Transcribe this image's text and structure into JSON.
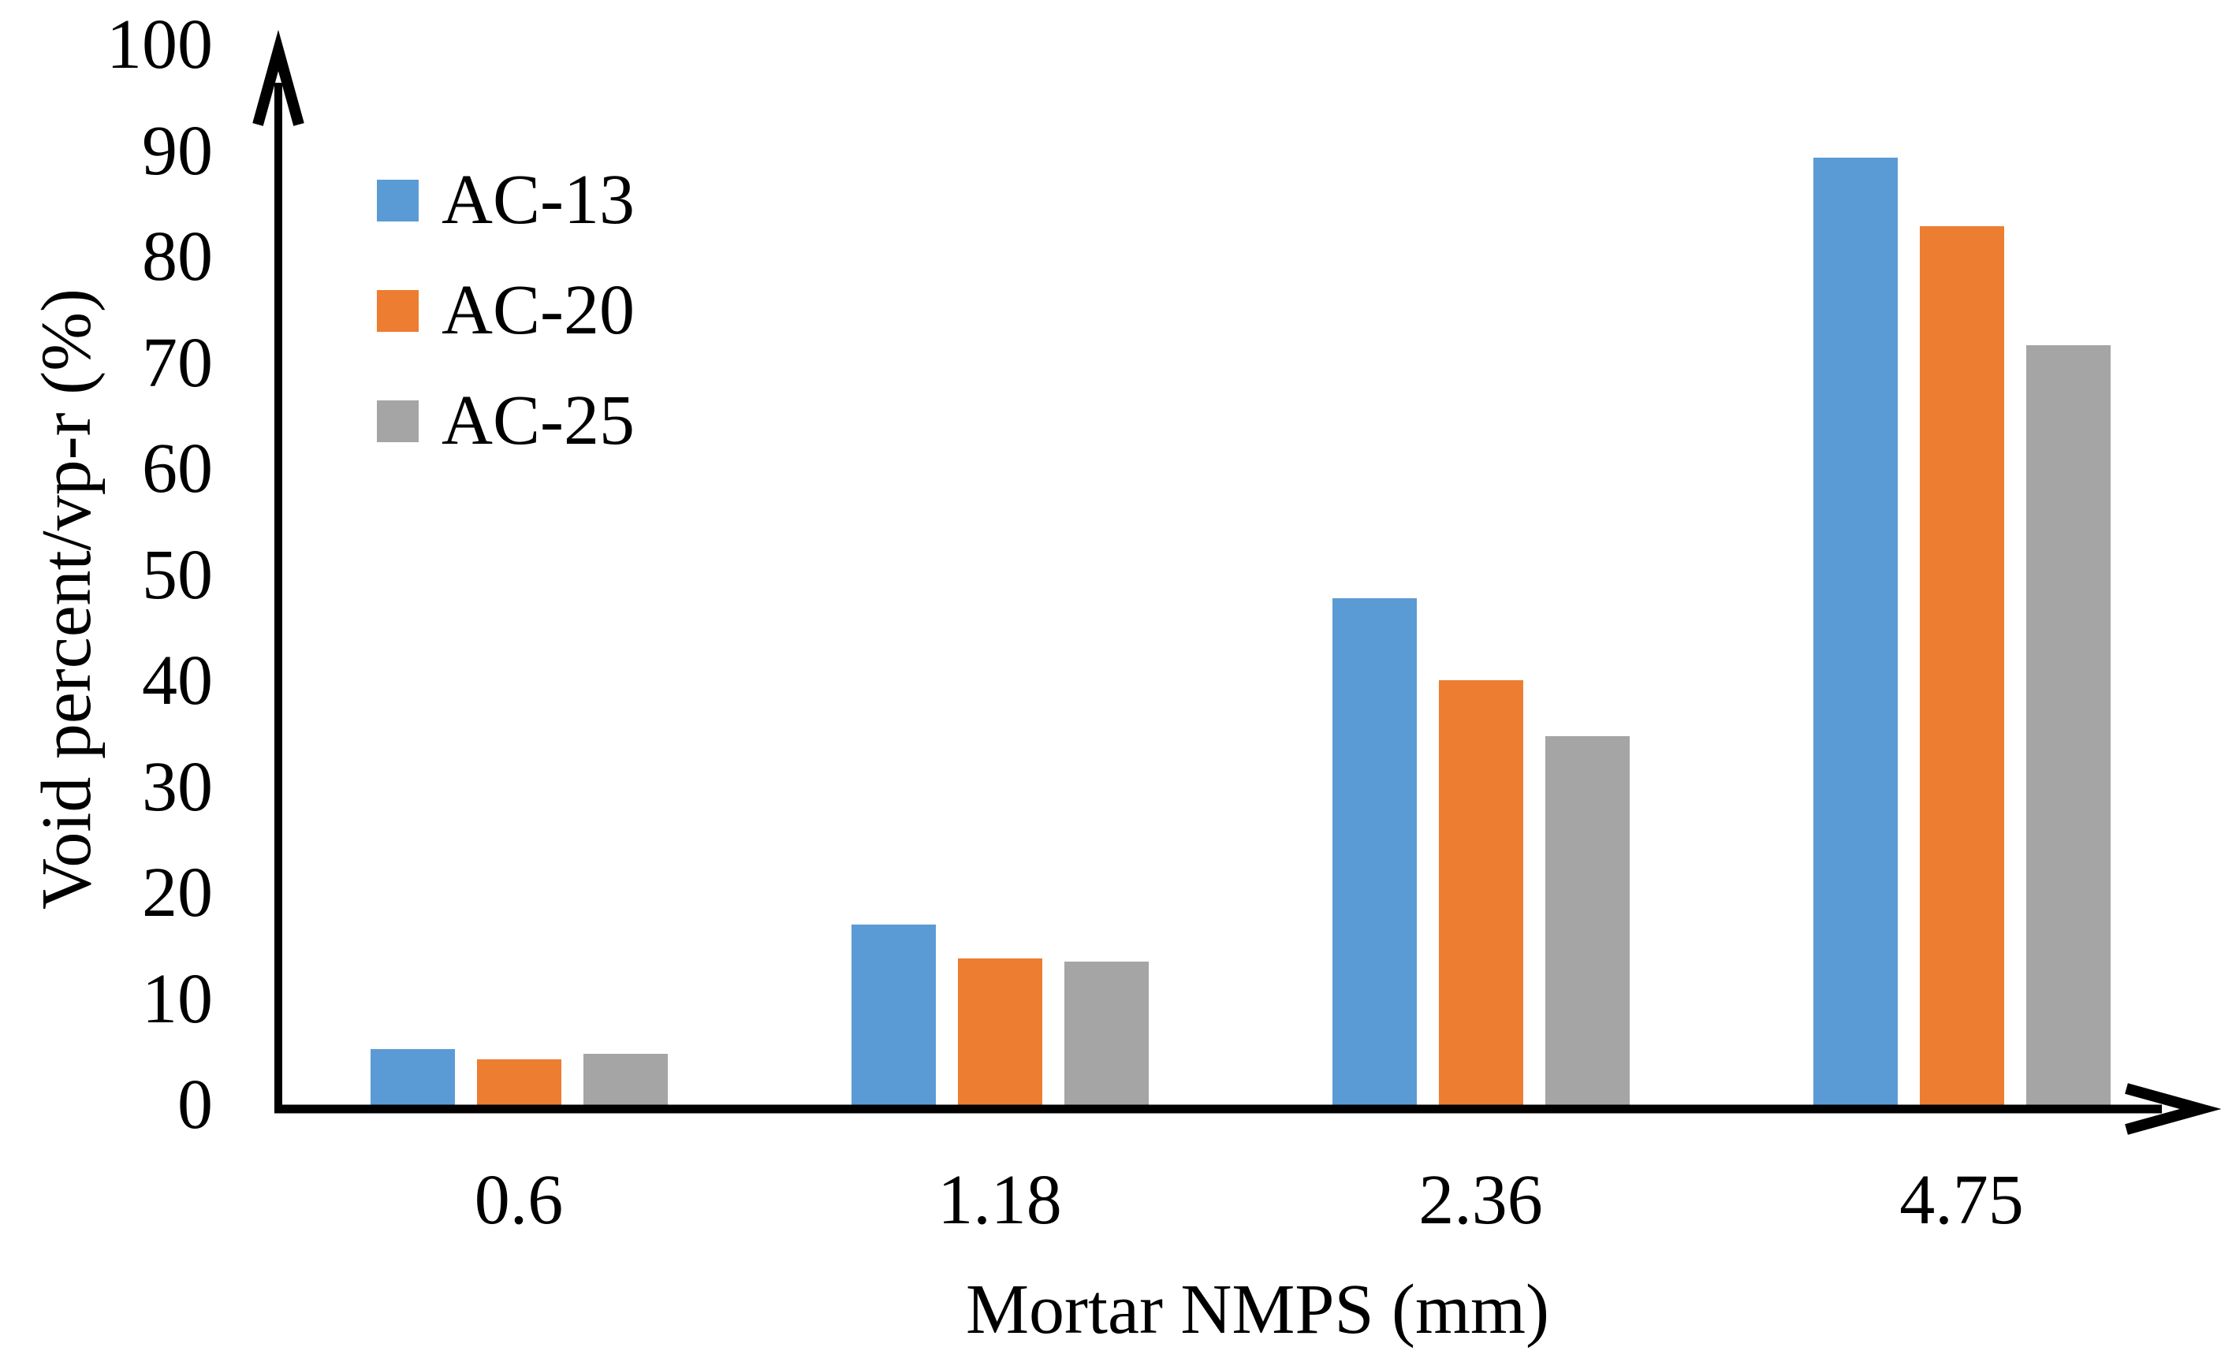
{
  "chart_data": {
    "type": "bar",
    "title": "",
    "xlabel": "Mortar NMPS (mm)",
    "ylabel": "Void percent/vp-r (%)",
    "categories": [
      "0.6",
      "1.18",
      "2.36",
      "4.75"
    ],
    "series": [
      {
        "name": "AC-13",
        "color": "#5B9BD5",
        "values": [
          5.3,
          17.0,
          47.8,
          89.4
        ]
      },
      {
        "name": "AC-20",
        "color": "#ED7D31",
        "values": [
          4.3,
          13.8,
          40.1,
          82.9
        ]
      },
      {
        "name": "AC-25",
        "color": "#A5A5A5",
        "values": [
          4.8,
          13.5,
          34.8,
          71.7
        ]
      }
    ],
    "ylim": [
      0,
      100
    ],
    "yticks": [
      0,
      10,
      20,
      30,
      40,
      50,
      60,
      70,
      80,
      90,
      100
    ],
    "grid": false,
    "legend_position": "upper-left-vertical",
    "axis_color": "#000000",
    "background_color": "#ffffff"
  }
}
